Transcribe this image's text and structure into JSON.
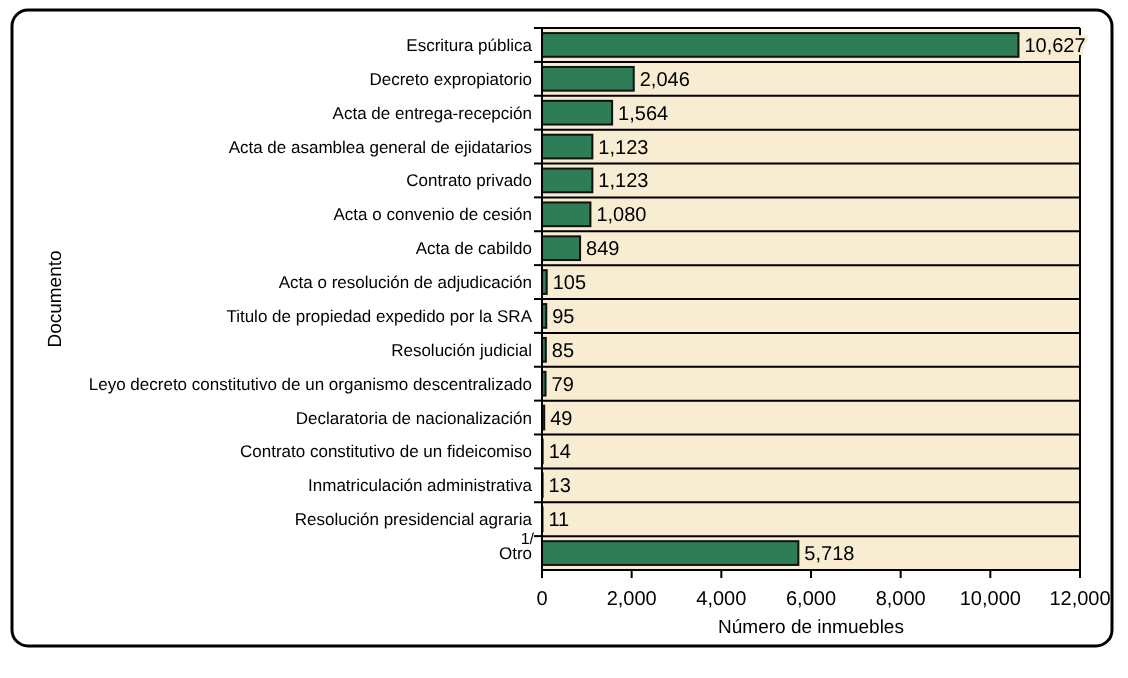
{
  "chart_data": {
    "type": "bar",
    "orientation": "horizontal",
    "xlabel": "Número de inmuebles",
    "ylabel": "Documento",
    "categories": [
      "Escritura pública",
      "Decreto expropiatorio",
      "Acta de entrega-recepción",
      "Acta de asamblea general de ejidatarios",
      "Contrato privado",
      "Acta o convenio de cesión",
      "Acta de cabildo",
      "Acta o resolución de adjudicación",
      "Titulo de propiedad expedido por la SRA",
      "Resolución judicial",
      "Leyo decreto constitutivo de un organismo descentralizado",
      "Declaratoria de nacionalización",
      "Contrato constitutivo de un fideicomiso",
      "Inmatriculación administrativa",
      "Resolución presidencial agraria",
      "Otro"
    ],
    "values": [
      10627,
      2046,
      1564,
      1123,
      1123,
      1080,
      849,
      105,
      95,
      85,
      79,
      49,
      14,
      13,
      11,
      5718
    ],
    "value_labels": [
      "10,627",
      "2,046",
      "1,564",
      "1,123",
      "1,123",
      "1,080",
      "849",
      "105",
      "95",
      "85",
      "79",
      "49",
      "14",
      "13",
      "11",
      "5,718"
    ],
    "color": "#2e7d57",
    "xlim": [
      0,
      12000
    ],
    "xticks": [
      {
        "value": 0,
        "label": "0"
      },
      {
        "value": 2000,
        "label": "2,000"
      },
      {
        "value": 4000,
        "label": "4,000"
      },
      {
        "value": 6000,
        "label": "6,000"
      },
      {
        "value": 8000,
        "label": "8,000"
      },
      {
        "value": 10000,
        "label": "10,000"
      },
      {
        "value": 12000,
        "label": "12,000"
      }
    ],
    "grid": "y",
    "annotations": [
      "1/"
    ]
  }
}
